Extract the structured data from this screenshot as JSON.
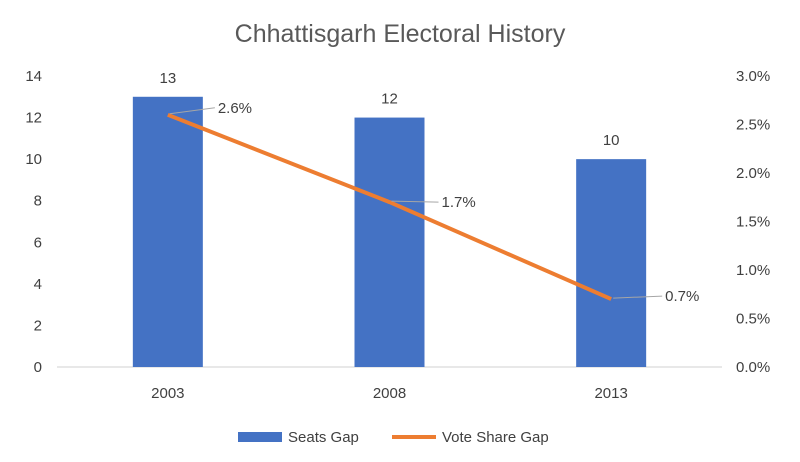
{
  "chart_data": {
    "type": "bar",
    "title": "Chhattisgarh Electoral History",
    "categories": [
      "2003",
      "2008",
      "2013"
    ],
    "series": [
      {
        "name": "Seats Gap",
        "kind": "bar",
        "axis": "left",
        "color": "#4472C4",
        "values": [
          13,
          12,
          10
        ],
        "labels": [
          "13",
          "12",
          "10"
        ]
      },
      {
        "name": "Vote Share Gap",
        "kind": "line",
        "axis": "right",
        "color": "#ED7D31",
        "values": [
          2.6,
          1.7,
          0.7
        ],
        "labels": [
          "2.6%",
          "1.7%",
          "0.7%"
        ]
      }
    ],
    "y_left": {
      "min": 0,
      "max": 14,
      "ticks": [
        "0",
        "2",
        "4",
        "6",
        "8",
        "10",
        "12",
        "14"
      ]
    },
    "y_right": {
      "min": 0,
      "max": 3,
      "ticks": [
        "0.0%",
        "0.5%",
        "1.0%",
        "1.5%",
        "2.0%",
        "2.5%",
        "3.0%"
      ]
    },
    "grid": false,
    "legend_position": "bottom"
  }
}
